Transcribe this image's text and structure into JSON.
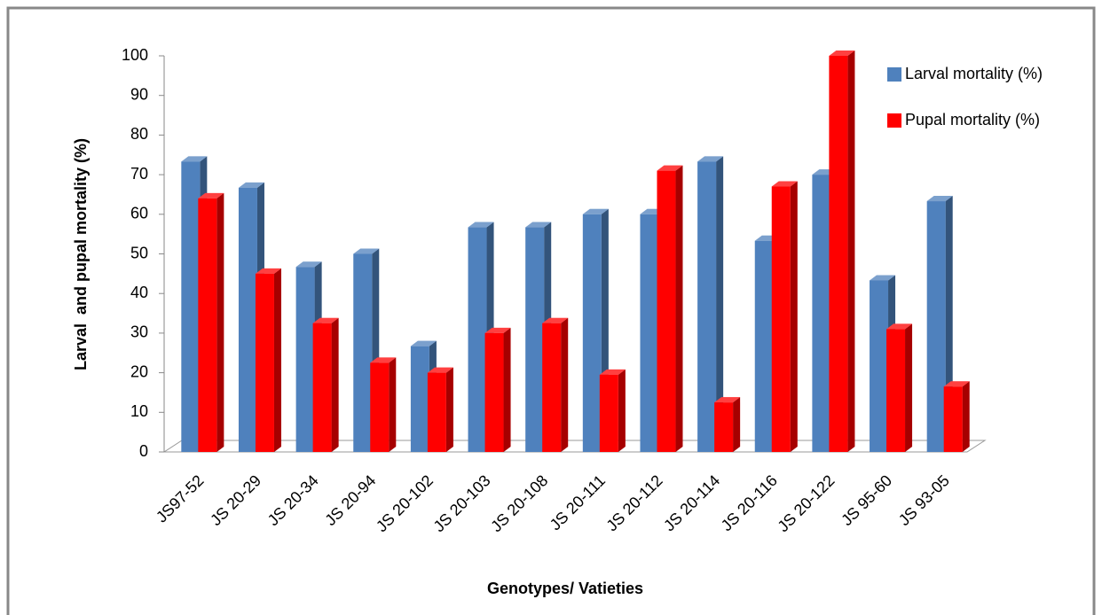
{
  "chart_data": {
    "type": "bar3d",
    "y_label": "Larval  and pupal mortality (%)",
    "x_label": "Genotypes/ Vatieties",
    "categories": [
      "JS97-52",
      "JS 20-29",
      "JS 20-34",
      "JS 20-94",
      "JS 20-102",
      "JS 20-103",
      "JS 20-108",
      "JS 20-111",
      "JS 20-112",
      "JS 20-114",
      "JS 20-116",
      "JS 20-122",
      "JS 95-60",
      "JS 93-05"
    ],
    "series": [
      {
        "name": "Larval mortality (%)",
        "color": "#4f81bd",
        "values": [
          73.3,
          66.7,
          46.7,
          50,
          26.7,
          56.7,
          56.7,
          60,
          60,
          73.3,
          53.3,
          70,
          43.3,
          63.3
        ]
      },
      {
        "name": "Pupal mortality (%)",
        "color": "#ff0000",
        "values": [
          64,
          45,
          32.5,
          22.5,
          20,
          30,
          32.5,
          19.5,
          71,
          12.5,
          67,
          100,
          31,
          16.5
        ]
      }
    ],
    "ylim": [
      0,
      100
    ],
    "yticks": [
      0,
      10,
      20,
      30,
      40,
      50,
      60,
      70,
      80,
      90,
      100
    ],
    "grid": false,
    "legend_position": "top-right"
  }
}
